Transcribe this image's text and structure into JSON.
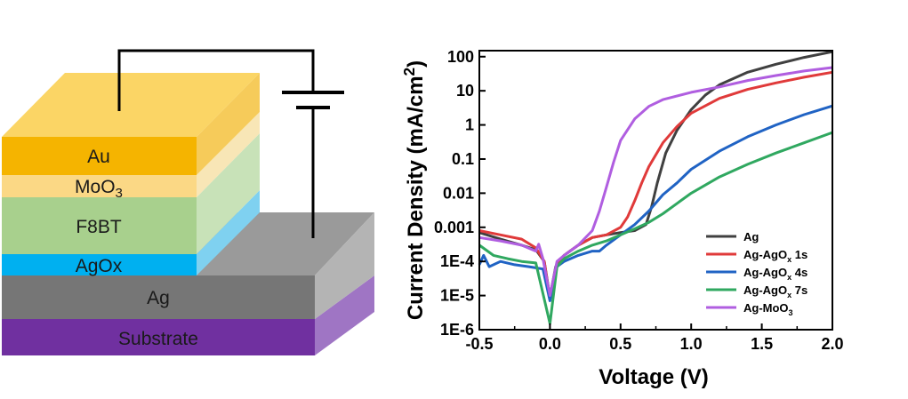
{
  "device": {
    "layers": {
      "au": "Au",
      "moo3": "MoO",
      "moo3_sub": "3",
      "f8bt": "F8BT",
      "agox": "AgOx",
      "ag": "Ag",
      "substrate": "Substrate"
    },
    "colors": {
      "au": "#f5b400",
      "moo3": "#fbd885",
      "f8bt": "#a8d08d",
      "agox": "#00b0f0",
      "ag": "#767676",
      "substrate": "#7030a0"
    }
  },
  "chart_data": {
    "type": "line",
    "xlabel": "Voltage (V)",
    "ylabel_main": "Current Density (mA/cm",
    "ylabel_sup": "2",
    "ylabel_close": ")",
    "xlim": [
      -0.5,
      2.0
    ],
    "ylim": [
      1e-06,
      150
    ],
    "yscale": "log",
    "x_ticks": [
      "-0.5",
      "0.0",
      "0.5",
      "1.0",
      "1.5",
      "2.0"
    ],
    "y_ticks": [
      {
        "label": "100",
        "value": 100
      },
      {
        "label": "10",
        "value": 10
      },
      {
        "label": "1",
        "value": 1
      },
      {
        "label": "0.1",
        "value": 0.1
      },
      {
        "label": "0.01",
        "value": 0.01
      },
      {
        "label": "0.001",
        "value": 0.001
      },
      {
        "label": "1E-4",
        "value": 0.0001
      },
      {
        "label": "1E-5",
        "value": 1e-05
      },
      {
        "label": "1E-6",
        "value": 1e-06
      }
    ],
    "legend_position": "bottom-right",
    "series": [
      {
        "name": "Ag",
        "sub": "",
        "suffix": "",
        "color": "#404040",
        "points": [
          [
            -0.5,
            0.0007
          ],
          [
            -0.35,
            0.00045
          ],
          [
            -0.2,
            0.0003
          ],
          [
            -0.1,
            0.00022
          ],
          [
            -0.04,
            0.0001
          ],
          [
            0.0,
            9e-06
          ],
          [
            0.04,
            7e-05
          ],
          [
            0.1,
            0.00015
          ],
          [
            0.2,
            0.0003
          ],
          [
            0.3,
            0.0005
          ],
          [
            0.4,
            0.0006
          ],
          [
            0.5,
            0.0007
          ],
          [
            0.6,
            0.0008
          ],
          [
            0.68,
            0.0012
          ],
          [
            0.72,
            0.004
          ],
          [
            0.76,
            0.02
          ],
          [
            0.82,
            0.15
          ],
          [
            0.9,
            0.7
          ],
          [
            1.0,
            2.8
          ],
          [
            1.1,
            7.5
          ],
          [
            1.2,
            15
          ],
          [
            1.4,
            35
          ],
          [
            1.6,
            60
          ],
          [
            1.8,
            95
          ],
          [
            2.0,
            140
          ]
        ]
      },
      {
        "name": "Ag-AgO",
        "sub": "x",
        "suffix": " 1s",
        "color": "#e03a3a",
        "points": [
          [
            -0.5,
            0.0008
          ],
          [
            -0.35,
            0.0006
          ],
          [
            -0.2,
            0.00045
          ],
          [
            -0.1,
            0.00025
          ],
          [
            -0.04,
            0.0001
          ],
          [
            0.0,
            8e-06
          ],
          [
            0.05,
            9e-05
          ],
          [
            0.1,
            0.00015
          ],
          [
            0.2,
            0.0003
          ],
          [
            0.3,
            0.0005
          ],
          [
            0.4,
            0.0006
          ],
          [
            0.5,
            0.001
          ],
          [
            0.55,
            0.002
          ],
          [
            0.6,
            0.006
          ],
          [
            0.65,
            0.02
          ],
          [
            0.7,
            0.06
          ],
          [
            0.8,
            0.3
          ],
          [
            0.9,
            0.9
          ],
          [
            1.0,
            2.2
          ],
          [
            1.2,
            6
          ],
          [
            1.4,
            11
          ],
          [
            1.6,
            17
          ],
          [
            1.8,
            25
          ],
          [
            2.0,
            35
          ]
        ]
      },
      {
        "name": "Ag-AgO",
        "sub": "x",
        "suffix": " 4s",
        "color": "#2063c4",
        "points": [
          [
            -0.5,
            8e-05
          ],
          [
            -0.47,
            0.00015
          ],
          [
            -0.43,
            7e-05
          ],
          [
            -0.35,
            0.0001
          ],
          [
            -0.25,
            8e-05
          ],
          [
            -0.15,
            7e-05
          ],
          [
            -0.05,
            6e-05
          ],
          [
            0.0,
            7e-06
          ],
          [
            0.05,
            7e-05
          ],
          [
            0.1,
            0.0001
          ],
          [
            0.2,
            0.00015
          ],
          [
            0.3,
            0.0002
          ],
          [
            0.35,
            0.0002
          ],
          [
            0.4,
            0.0003
          ],
          [
            0.5,
            0.0006
          ],
          [
            0.6,
            0.0012
          ],
          [
            0.7,
            0.003
          ],
          [
            0.8,
            0.009
          ],
          [
            0.9,
            0.02
          ],
          [
            1.0,
            0.05
          ],
          [
            1.2,
            0.17
          ],
          [
            1.4,
            0.45
          ],
          [
            1.6,
            1.0
          ],
          [
            1.8,
            2.0
          ],
          [
            2.0,
            3.6
          ]
        ]
      },
      {
        "name": "Ag-AgO",
        "sub": "x",
        "suffix": " 7s",
        "color": "#30a860",
        "points": [
          [
            -0.5,
            0.0003
          ],
          [
            -0.4,
            0.00015
          ],
          [
            -0.3,
            0.00012
          ],
          [
            -0.2,
            0.0001
          ],
          [
            -0.1,
            9e-05
          ],
          [
            0.0,
            1.5e-06
          ],
          [
            0.05,
            7e-05
          ],
          [
            0.1,
            0.00012
          ],
          [
            0.2,
            0.0002
          ],
          [
            0.3,
            0.0003
          ],
          [
            0.4,
            0.0004
          ],
          [
            0.5,
            0.0006
          ],
          [
            0.6,
            0.0009
          ],
          [
            0.7,
            0.0014
          ],
          [
            0.8,
            0.0025
          ],
          [
            0.9,
            0.005
          ],
          [
            1.0,
            0.01
          ],
          [
            1.2,
            0.03
          ],
          [
            1.4,
            0.07
          ],
          [
            1.6,
            0.15
          ],
          [
            1.8,
            0.3
          ],
          [
            2.0,
            0.6
          ]
        ]
      },
      {
        "name": "Ag-MoO",
        "sub": "3",
        "suffix": "",
        "color": "#b05ee0",
        "points": [
          [
            -0.5,
            0.0005
          ],
          [
            -0.35,
            0.0004
          ],
          [
            -0.2,
            0.0003
          ],
          [
            -0.1,
            0.0002
          ],
          [
            -0.08,
            0.00032
          ],
          [
            -0.05,
            0.00012
          ],
          [
            0.0,
            1e-05
          ],
          [
            0.05,
            0.0001
          ],
          [
            0.1,
            0.00015
          ],
          [
            0.2,
            0.0003
          ],
          [
            0.3,
            0.0008
          ],
          [
            0.35,
            0.003
          ],
          [
            0.4,
            0.015
          ],
          [
            0.45,
            0.08
          ],
          [
            0.5,
            0.35
          ],
          [
            0.6,
            1.5
          ],
          [
            0.7,
            3.5
          ],
          [
            0.8,
            5.5
          ],
          [
            1.0,
            9
          ],
          [
            1.2,
            13
          ],
          [
            1.4,
            20
          ],
          [
            1.6,
            28
          ],
          [
            1.8,
            38
          ],
          [
            2.0,
            48
          ]
        ]
      }
    ]
  }
}
